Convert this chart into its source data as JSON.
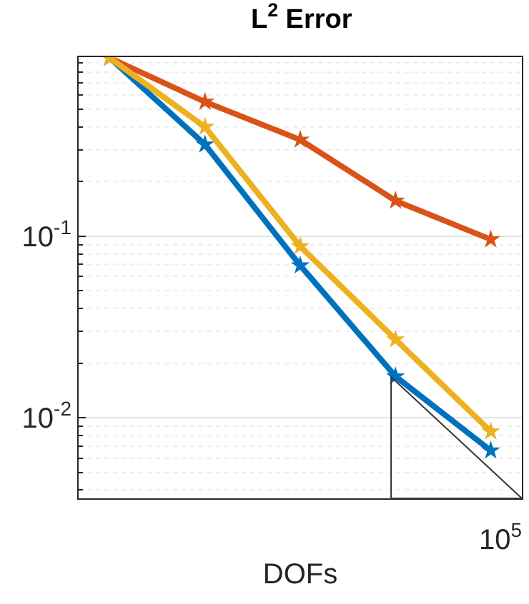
{
  "chart_data": {
    "type": "line",
    "title": "L$^{2}$ Error",
    "xlabel": "DOFs",
    "categories": [
      null,
      null,
      null,
      null,
      null
    ],
    "annotations": [
      "10$^{5}$"
    ],
    "series": [
      {
        "color": "#0072bd",
        "values": [
          0.96,
          0.32,
          0.069,
          0.0169,
          0.0066
        ]
      },
      {
        "color": "#d95319",
        "values": [
          0.96,
          0.55,
          0.34,
          0.157,
          0.096
        ]
      },
      {
        "color": "#edb120",
        "values": [
          0.96,
          0.4,
          0.088,
          0.027,
          0.0084
        ]
      }
    ],
    "tick_labels": "y",
    "log": "y",
    "ylim": [
      0.0036,
      0.97
    ],
    "yticks": [
      {
        "value": 0.01,
        "label": "10$^{-2}$"
      },
      {
        "value": 0.1,
        "label": "10$^{-1}$"
      }
    ],
    "grid": "y",
    "marker": "star",
    "line_style": "solid"
  }
}
